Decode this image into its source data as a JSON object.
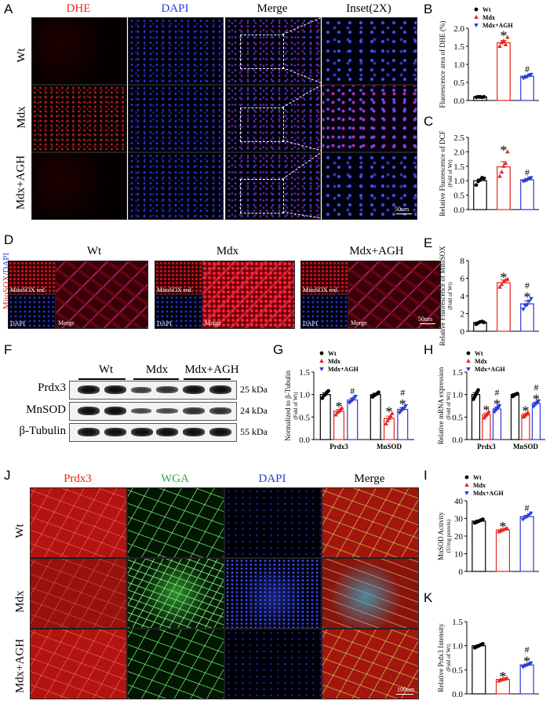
{
  "panel_letters": {
    "A": "A",
    "B": "B",
    "C": "C",
    "D": "D",
    "E": "E",
    "F": "F",
    "G": "G",
    "H": "H",
    "I": "I",
    "J": "J",
    "K": "K"
  },
  "panelA": {
    "columns": [
      "DHE",
      "DAPI",
      "Merge",
      "Inset(2X)"
    ],
    "rows": [
      "Wt",
      "Mdx",
      "Mdx+AGH"
    ],
    "scale": "50um"
  },
  "panelD": {
    "side_label_red": "MitoSOX",
    "side_label_sep": "/",
    "side_label_blue": "DAPI",
    "groups": [
      "Wt",
      "Mdx",
      "Mdx+AGH"
    ],
    "sub_labels": {
      "mito": "MitoSOX red",
      "dapi": "DAPI",
      "merge": "Merge"
    },
    "scale": "50um"
  },
  "panelF": {
    "groups": [
      "Wt",
      "Mdx",
      "Mdx+AGH"
    ],
    "proteins": [
      "Prdx3",
      "MnSOD",
      "β-Tubulin"
    ],
    "sizes": [
      "25 kDa",
      "24 kDa",
      "55 kDa"
    ]
  },
  "panelJ": {
    "columns": [
      "Prdx3",
      "WGA",
      "DAPI",
      "Merge"
    ],
    "rows": [
      "Wt",
      "Mdx",
      "Mdx+AGH"
    ],
    "scale": "100um"
  },
  "colors": {
    "wt": "#000000",
    "mdx": "#e8251f",
    "agh": "#2a3ad8",
    "red_label": "#e8251f",
    "blue_label": "#2a3ad8",
    "green_label": "#22b33a"
  },
  "chart_data": [
    {
      "id": "B",
      "type": "bar",
      "categories": [
        "Wt",
        "Mdx",
        "Mdx+AGH"
      ],
      "legend": [
        "Wt",
        "Mdx",
        "Mdx+AGH"
      ],
      "values": [
        0.1,
        1.6,
        0.67
      ],
      "errors": [
        0.01,
        0.06,
        0.03
      ],
      "points": [
        [
          0.09,
          0.1,
          0.1,
          0.09,
          0.1
        ],
        [
          1.5,
          1.6,
          1.65,
          1.55,
          1.75
        ],
        [
          0.62,
          0.64,
          0.66,
          0.7,
          0.72
        ]
      ],
      "ylim": [
        0,
        2.0
      ],
      "yticks": [
        "0.0",
        "0.5",
        "1.0",
        "1.5",
        "2.0"
      ],
      "ylabel": "Fluorescence area of DHE (%)",
      "marks": [
        "",
        "*",
        "#"
      ]
    },
    {
      "id": "C",
      "type": "bar",
      "categories": [
        "Wt",
        "Mdx",
        "Mdx+AGH"
      ],
      "values": [
        1.0,
        1.48,
        1.03
      ],
      "errors": [
        0.06,
        0.18,
        0.05
      ],
      "points": [
        [
          0.85,
          0.98,
          1.02,
          1.1,
          1.08
        ],
        [
          1.15,
          1.3,
          1.5,
          1.6,
          2.0
        ],
        [
          0.98,
          1.0,
          1.03,
          1.08,
          1.1
        ]
      ],
      "ylim": [
        0,
        2.5
      ],
      "yticks": [
        "0.0",
        "0.5",
        "1.0",
        "1.5",
        "2.0",
        "2.5"
      ],
      "ylabel": "Relative Fluorescence of DCF",
      "ysublabel": "(Fold of Wt)",
      "marks": [
        "",
        "*",
        "#"
      ]
    },
    {
      "id": "E",
      "type": "bar",
      "categories": [
        "Wt",
        "Mdx",
        "Mdx+AGH"
      ],
      "values": [
        1.0,
        5.5,
        3.1
      ],
      "errors": [
        0.1,
        0.3,
        0.35
      ],
      "points": [
        [
          0.8,
          0.95,
          1.05,
          1.1,
          1.0
        ],
        [
          5.0,
          5.3,
          5.6,
          5.8,
          5.9
        ],
        [
          2.5,
          2.9,
          3.0,
          3.4,
          3.7
        ]
      ],
      "ylim": [
        0,
        8
      ],
      "yticks": [
        "0",
        "2",
        "4",
        "6",
        "8"
      ],
      "ylabel": "Relative Fluorescence of MitoSOX",
      "ysublabel": "(Fold of Wt)",
      "marks": [
        "",
        "*",
        "#*"
      ]
    },
    {
      "id": "G",
      "type": "bar",
      "categories": [
        "Prdx3",
        "MnSOD"
      ],
      "legend": [
        "Wt",
        "Mdx",
        "Mdx+AGH"
      ],
      "series": [
        {
          "name": "Wt",
          "values": [
            1.0,
            1.0
          ],
          "errors": [
            0.04,
            0.03
          ],
          "points": [
            [
              0.92,
              0.98,
              1.0,
              1.05,
              1.08
            ],
            [
              0.95,
              0.98,
              1.0,
              1.02,
              1.05
            ]
          ]
        },
        {
          "name": "Mdx",
          "values": [
            0.63,
            0.47
          ],
          "errors": [
            0.04,
            0.05
          ],
          "points": [
            [
              0.55,
              0.6,
              0.63,
              0.67,
              0.7
            ],
            [
              0.35,
              0.42,
              0.47,
              0.52,
              0.58
            ]
          ]
        },
        {
          "name": "Mdx+AGH",
          "values": [
            0.88,
            0.67
          ],
          "errors": [
            0.04,
            0.04
          ],
          "points": [
            [
              0.82,
              0.85,
              0.88,
              0.92,
              0.96
            ],
            [
              0.6,
              0.64,
              0.67,
              0.7,
              0.75
            ]
          ]
        }
      ],
      "ylim": [
        0,
        1.5
      ],
      "yticks": [
        "0.0",
        "0.5",
        "1.0",
        "1.5"
      ],
      "ylabel": "Normalized to β-Tubulin",
      "ysublabel": "(Fold of Wt)",
      "marks": [
        [
          "",
          "*",
          "#"
        ],
        [
          "",
          "*",
          "#*"
        ]
      ]
    },
    {
      "id": "H",
      "type": "bar",
      "categories": [
        "Prdx3",
        "MnSOD"
      ],
      "legend": [
        "Wt",
        "Mdx",
        "Mdx+AGH"
      ],
      "series": [
        {
          "name": "Wt",
          "values": [
            1.0,
            1.0
          ],
          "errors": [
            0.04,
            0.02
          ],
          "points": [
            [
              0.9,
              0.95,
              1.0,
              1.05,
              1.1
            ],
            [
              0.96,
              0.98,
              1.0,
              1.01,
              1.02
            ]
          ]
        },
        {
          "name": "Mdx",
          "values": [
            0.55,
            0.55
          ],
          "errors": [
            0.04,
            0.03
          ],
          "points": [
            [
              0.48,
              0.52,
              0.55,
              0.58,
              0.62
            ],
            [
              0.5,
              0.52,
              0.55,
              0.57,
              0.6
            ]
          ]
        },
        {
          "name": "Mdx+AGH",
          "values": [
            0.68,
            0.8
          ],
          "errors": [
            0.04,
            0.03
          ],
          "points": [
            [
              0.62,
              0.66,
              0.68,
              0.72,
              0.75
            ],
            [
              0.74,
              0.78,
              0.8,
              0.83,
              0.86
            ]
          ]
        }
      ],
      "ylim": [
        0,
        1.5
      ],
      "yticks": [
        "0.0",
        "0.5",
        "1.0",
        "1.5"
      ],
      "ylabel": "Relative mRNA expression",
      "ysublabel": "(Fold of Wt)",
      "marks": [
        [
          "",
          "*",
          "#*"
        ],
        [
          "",
          "*",
          "#*"
        ]
      ]
    },
    {
      "id": "I",
      "type": "bar",
      "categories": [
        "Wt",
        "Mdx",
        "Mdx+AGH"
      ],
      "legend": [
        "Wt",
        "Mdx",
        "Mdx+AGH"
      ],
      "values": [
        28.5,
        23.5,
        31.0
      ],
      "errors": [
        0.6,
        0.6,
        0.8
      ],
      "points": [
        [
          27.5,
          28,
          28.5,
          29,
          29.5
        ],
        [
          22.5,
          23,
          23.5,
          24,
          24.5
        ],
        [
          29.5,
          30.5,
          31,
          32,
          33
        ]
      ],
      "ylim": [
        0,
        40
      ],
      "yticks": [
        "0",
        "10",
        "20",
        "30",
        "40"
      ],
      "ylabel": "MnSOD Activity",
      "ysublabel": "(U/mg protein)",
      "marks": [
        "",
        "*",
        "#"
      ]
    },
    {
      "id": "K",
      "type": "bar",
      "categories": [
        "Wt",
        "Mdx",
        "Mdx+AGH"
      ],
      "values": [
        1.0,
        0.3,
        0.6
      ],
      "errors": [
        0.02,
        0.02,
        0.02
      ],
      "points": [
        [
          0.96,
          0.98,
          1.0,
          1.02,
          1.04
        ],
        [
          0.27,
          0.29,
          0.3,
          0.31,
          0.33
        ],
        [
          0.56,
          0.58,
          0.6,
          0.62,
          0.64
        ]
      ],
      "ylim": [
        0,
        1.5
      ],
      "yticks": [
        "0.0",
        "0.5",
        "1.0",
        "1.5"
      ],
      "ylabel": "Relative Prdx3 Intensity",
      "ysublabel": "(Fold of Wt)",
      "marks": [
        "",
        "*",
        "#*"
      ]
    }
  ]
}
